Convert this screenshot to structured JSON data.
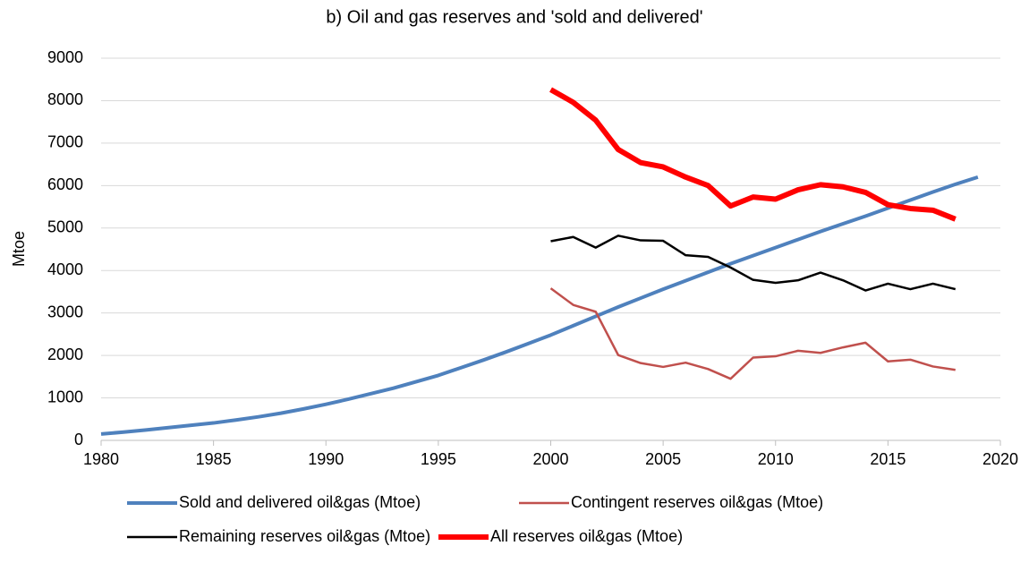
{
  "chart_data": {
    "type": "line",
    "title": "b) Oil and gas reserves and 'sold and delivered'",
    "y_label": "Mtoe",
    "xlim": [
      1980,
      2020
    ],
    "xticks": [
      1980,
      1985,
      1990,
      1995,
      2000,
      2005,
      2010,
      2015,
      2020
    ],
    "ylim": [
      0,
      9000
    ],
    "yticks": [
      0,
      1000,
      2000,
      3000,
      4000,
      5000,
      6000,
      7000,
      8000,
      9000
    ],
    "grid": true,
    "legend": "bottom",
    "series": [
      {
        "name": "Sold and delivered oil&gas (Mtoe)",
        "color": "#4f81bd",
        "x": [
          1980,
          1981,
          1982,
          1983,
          1984,
          1985,
          1986,
          1987,
          1988,
          1989,
          1990,
          1991,
          1992,
          1993,
          1994,
          1995,
          1996,
          1997,
          1998,
          1999,
          2000,
          2001,
          2002,
          2003,
          2004,
          2005,
          2006,
          2007,
          2008,
          2009,
          2010,
          2011,
          2012,
          2013,
          2014,
          2015,
          2016,
          2017,
          2018,
          2019
        ],
        "values": [
          150,
          195,
          245,
          300,
          355,
          410,
          480,
          555,
          640,
          740,
          850,
          970,
          1100,
          1230,
          1380,
          1530,
          1710,
          1890,
          2080,
          2280,
          2480,
          2700,
          2920,
          3140,
          3350,
          3560,
          3760,
          3960,
          4160,
          4350,
          4540,
          4730,
          4920,
          5100,
          5280,
          5470,
          5660,
          5850,
          6030,
          6200
        ]
      },
      {
        "name": "Contingent reserves oil&gas (Mtoe)",
        "color": "#c0504d",
        "x": [
          2000,
          2001,
          2002,
          2003,
          2004,
          2005,
          2006,
          2007,
          2008,
          2009,
          2010,
          2011,
          2012,
          2013,
          2014,
          2015,
          2016,
          2017,
          2018
        ],
        "values": [
          3580,
          3190,
          3030,
          2010,
          1820,
          1730,
          1830,
          1680,
          1450,
          1950,
          1980,
          2110,
          2060,
          2190,
          2300,
          1860,
          1900,
          1740,
          1660
        ]
      },
      {
        "name": "Remaining reserves oil&gas (Mtoe)",
        "color": "#000000",
        "x": [
          2000,
          2001,
          2002,
          2003,
          2004,
          2005,
          2006,
          2007,
          2008,
          2009,
          2010,
          2011,
          2012,
          2013,
          2014,
          2015,
          2016,
          2017,
          2018
        ],
        "values": [
          4690,
          4790,
          4540,
          4820,
          4710,
          4700,
          4360,
          4320,
          4070,
          3780,
          3710,
          3770,
          3950,
          3770,
          3530,
          3690,
          3560,
          3690,
          3560
        ]
      },
      {
        "name": "All reserves oil&gas (Mtoe)",
        "color": "#ff0000",
        "x": [
          2000,
          2001,
          2002,
          2003,
          2004,
          2005,
          2006,
          2007,
          2008,
          2009,
          2010,
          2011,
          2012,
          2013,
          2014,
          2015,
          2016,
          2017,
          2018
        ],
        "values": [
          8260,
          7960,
          7540,
          6850,
          6540,
          6440,
          6200,
          6000,
          5520,
          5730,
          5680,
          5900,
          6020,
          5970,
          5840,
          5550,
          5460,
          5420,
          5210
        ]
      }
    ]
  }
}
